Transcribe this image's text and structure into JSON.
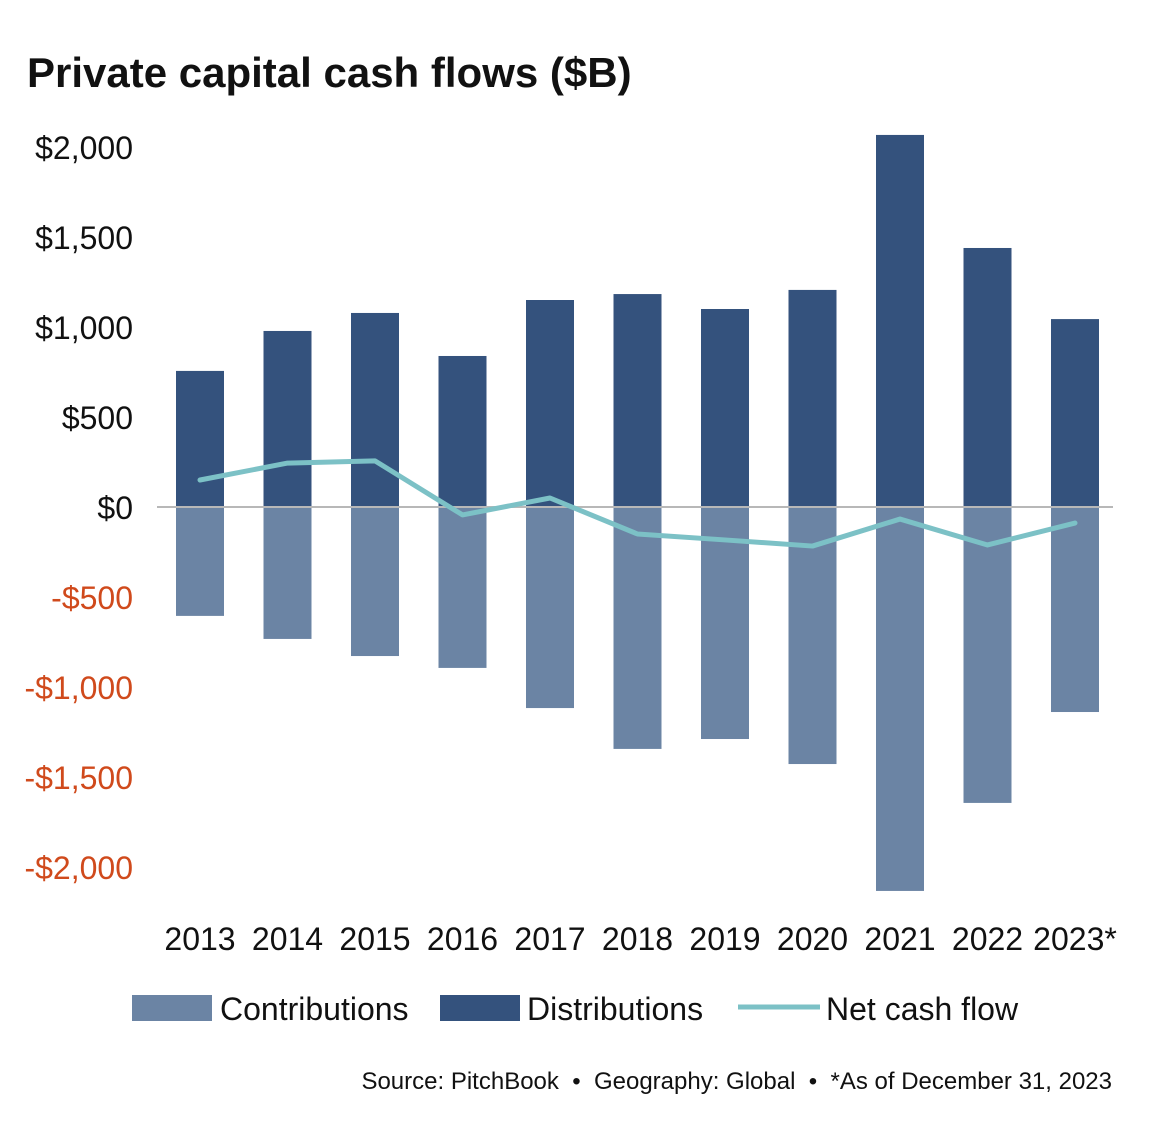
{
  "chart_data": {
    "type": "bar",
    "title": "Private capital cash flows ($B)",
    "categories": [
      "2013",
      "2014",
      "2015",
      "2016",
      "2017",
      "2018",
      "2019",
      "2020",
      "2021",
      "2022",
      "2023*"
    ],
    "series": [
      {
        "name": "Contributions",
        "kind": "bar",
        "color": "#6b84a4",
        "values": [
          -605,
          -733,
          -828,
          -894,
          -1117,
          -1344,
          -1289,
          -1428,
          -2133,
          -1644,
          -1139
        ]
      },
      {
        "name": "Distributions",
        "kind": "bar",
        "color": "#34527d",
        "values": [
          756,
          978,
          1078,
          839,
          1150,
          1183,
          1100,
          1206,
          2067,
          1439,
          1044
        ]
      },
      {
        "name": "Net cash flow",
        "kind": "line",
        "color": "#7cc1c6",
        "values": [
          150,
          244,
          256,
          -44,
          50,
          -150,
          -183,
          -217,
          -67,
          -211,
          -89
        ]
      }
    ],
    "ylim": [
      -2100,
      2100
    ],
    "yticks": [
      2000,
      1500,
      1000,
      500,
      0,
      -500,
      -1000,
      -1500,
      -2000
    ],
    "ytick_labels": [
      "$2,000",
      "$1,500",
      "$1,000",
      "$500",
      "$0",
      "-$500",
      "-$1,000",
      "-$1,500",
      "-$2,000"
    ],
    "negative_label_color": "#d04a1c",
    "grid": false,
    "legend_placement": "bottom",
    "xlabel": "",
    "ylabel": "",
    "source": "Source: PitchBook  •  Geography: Global  •  *As of December 31, 2023"
  }
}
